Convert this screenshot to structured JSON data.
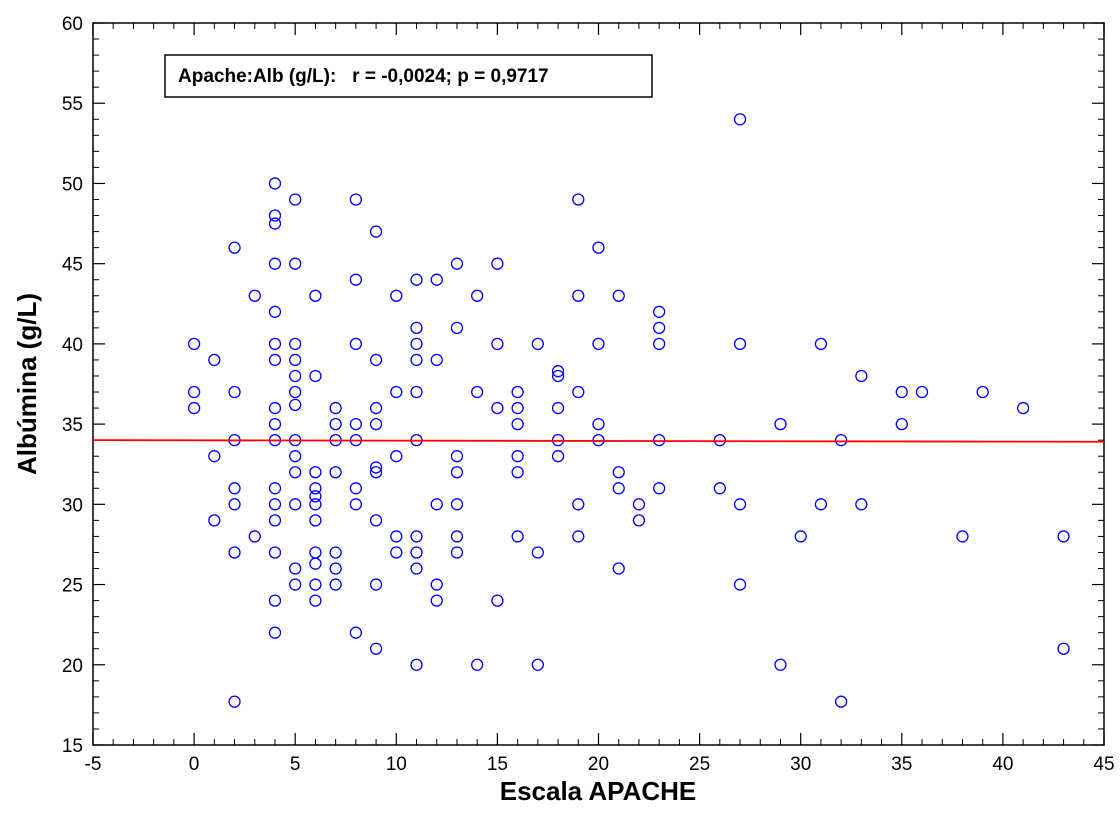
{
  "chart_data": {
    "type": "scatter",
    "title": "",
    "xlabel": "Escala APACHE",
    "ylabel": "Albúmina (g/L)",
    "xlim": [
      -5,
      45
    ],
    "ylim": [
      15,
      60
    ],
    "xticks": [
      -5,
      0,
      5,
      10,
      15,
      20,
      25,
      30,
      35,
      40,
      45
    ],
    "yticks": [
      15,
      20,
      25,
      30,
      35,
      40,
      45,
      50,
      55,
      60
    ],
    "annotation": "Apache:Alb (g/L):   r = -0,0024; p = 0,9717",
    "marker_color": "#0000ff",
    "line_color": "#ff0000",
    "regression": {
      "x": [
        -5,
        45
      ],
      "y": [
        34.0,
        33.9
      ]
    },
    "points": [
      [
        0,
        40
      ],
      [
        0,
        37
      ],
      [
        0,
        36
      ],
      [
        1,
        39
      ],
      [
        1,
        33
      ],
      [
        1,
        29
      ],
      [
        2,
        46
      ],
      [
        2,
        37
      ],
      [
        2,
        34
      ],
      [
        2,
        31
      ],
      [
        2,
        30
      ],
      [
        2,
        27
      ],
      [
        2,
        17.7
      ],
      [
        3,
        43
      ],
      [
        3,
        28
      ],
      [
        4,
        50
      ],
      [
        4,
        48
      ],
      [
        4,
        47.5
      ],
      [
        4,
        45
      ],
      [
        4,
        42
      ],
      [
        4,
        40
      ],
      [
        4,
        39
      ],
      [
        4,
        36
      ],
      [
        4,
        35
      ],
      [
        4,
        34
      ],
      [
        4,
        31
      ],
      [
        4,
        30
      ],
      [
        4,
        29
      ],
      [
        4,
        27
      ],
      [
        4,
        24
      ],
      [
        4,
        22
      ],
      [
        5,
        49
      ],
      [
        5,
        45
      ],
      [
        5,
        40
      ],
      [
        5,
        39
      ],
      [
        5,
        38
      ],
      [
        5,
        37
      ],
      [
        5,
        36.2
      ],
      [
        5,
        34
      ],
      [
        5,
        33
      ],
      [
        5,
        32
      ],
      [
        5,
        30
      ],
      [
        5,
        26
      ],
      [
        5,
        25
      ],
      [
        6,
        43
      ],
      [
        6,
        38
      ],
      [
        6,
        32
      ],
      [
        6,
        31
      ],
      [
        6,
        30.5
      ],
      [
        6,
        30
      ],
      [
        6,
        29
      ],
      [
        6,
        27
      ],
      [
        6,
        26.3
      ],
      [
        6,
        25
      ],
      [
        6,
        24
      ],
      [
        7,
        36
      ],
      [
        7,
        35
      ],
      [
        7,
        34
      ],
      [
        7,
        32
      ],
      [
        7,
        27
      ],
      [
        7,
        26
      ],
      [
        7,
        25
      ],
      [
        8,
        49
      ],
      [
        8,
        44
      ],
      [
        8,
        40
      ],
      [
        8,
        35
      ],
      [
        8,
        34
      ],
      [
        8,
        31
      ],
      [
        8,
        30
      ],
      [
        8,
        22
      ],
      [
        9,
        47
      ],
      [
        9,
        39
      ],
      [
        9,
        36
      ],
      [
        9,
        35
      ],
      [
        9,
        32.3
      ],
      [
        9,
        32
      ],
      [
        9,
        29
      ],
      [
        9,
        25
      ],
      [
        9,
        21
      ],
      [
        10,
        43
      ],
      [
        10,
        37
      ],
      [
        10,
        33
      ],
      [
        10,
        28
      ],
      [
        10,
        27
      ],
      [
        11,
        44
      ],
      [
        11,
        41
      ],
      [
        11,
        40
      ],
      [
        11,
        39
      ],
      [
        11,
        37
      ],
      [
        11,
        34
      ],
      [
        11,
        28
      ],
      [
        11,
        27
      ],
      [
        11,
        26
      ],
      [
        11,
        20
      ],
      [
        12,
        44
      ],
      [
        12,
        39
      ],
      [
        12,
        30
      ],
      [
        12,
        25
      ],
      [
        12,
        24
      ],
      [
        13,
        45
      ],
      [
        13,
        41
      ],
      [
        13,
        33
      ],
      [
        13,
        32
      ],
      [
        13,
        30
      ],
      [
        13,
        28
      ],
      [
        13,
        27
      ],
      [
        14,
        43
      ],
      [
        14,
        37
      ],
      [
        14,
        20
      ],
      [
        15,
        45
      ],
      [
        15,
        40
      ],
      [
        15,
        36
      ],
      [
        15,
        24
      ],
      [
        16,
        37
      ],
      [
        16,
        36
      ],
      [
        16,
        35
      ],
      [
        16,
        33
      ],
      [
        16,
        32
      ],
      [
        16,
        28
      ],
      [
        17,
        40
      ],
      [
        17,
        27
      ],
      [
        17,
        20
      ],
      [
        18,
        38.3
      ],
      [
        18,
        38
      ],
      [
        18,
        36
      ],
      [
        18,
        34
      ],
      [
        18,
        33
      ],
      [
        19,
        49
      ],
      [
        19,
        43
      ],
      [
        19,
        37
      ],
      [
        19,
        30
      ],
      [
        19,
        28
      ],
      [
        20,
        46
      ],
      [
        20,
        40
      ],
      [
        20,
        35
      ],
      [
        20,
        34
      ],
      [
        21,
        43
      ],
      [
        21,
        32
      ],
      [
        21,
        31
      ],
      [
        21,
        26
      ],
      [
        22,
        30
      ],
      [
        22,
        29
      ],
      [
        23,
        42
      ],
      [
        23,
        41
      ],
      [
        23,
        40
      ],
      [
        23,
        34
      ],
      [
        23,
        31
      ],
      [
        26,
        34
      ],
      [
        26,
        31
      ],
      [
        27,
        54
      ],
      [
        27,
        40
      ],
      [
        27,
        30
      ],
      [
        27,
        25
      ],
      [
        29,
        35
      ],
      [
        29,
        20
      ],
      [
        30,
        28
      ],
      [
        31,
        40
      ],
      [
        31,
        30
      ],
      [
        32,
        34
      ],
      [
        32,
        17.7
      ],
      [
        33,
        38
      ],
      [
        33,
        30
      ],
      [
        35,
        37
      ],
      [
        35,
        35
      ],
      [
        36,
        37
      ],
      [
        38,
        28
      ],
      [
        39,
        37
      ],
      [
        41,
        36
      ],
      [
        43,
        28
      ],
      [
        43,
        21
      ]
    ]
  }
}
